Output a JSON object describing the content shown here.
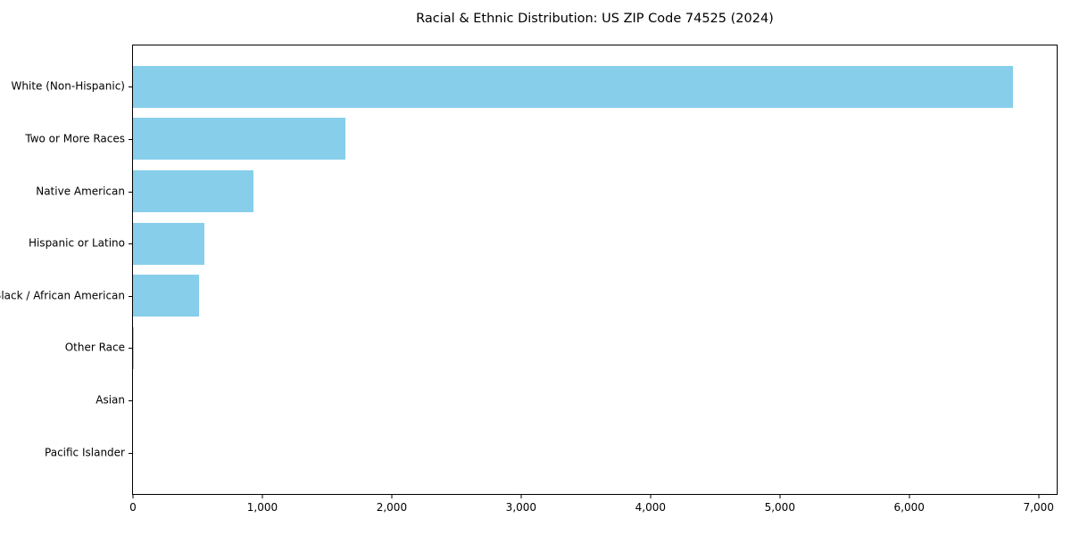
{
  "chart_data": {
    "type": "bar",
    "orientation": "horizontal",
    "title": "Racial & Ethnic Distribution: US ZIP Code 74525 (2024)",
    "categories": [
      "White (Non-Hispanic)",
      "Two or More Races",
      "Native American",
      "Hispanic or Latino",
      "Black / African American",
      "Other Race",
      "Asian",
      "Pacific Islander"
    ],
    "values": [
      6800,
      1640,
      930,
      550,
      510,
      10,
      0,
      0
    ],
    "xlabel": "",
    "ylabel": "",
    "xlim": [
      0,
      7140
    ],
    "x_ticks": [
      {
        "value": 0,
        "label": "0"
      },
      {
        "value": 1000,
        "label": "1,000"
      },
      {
        "value": 2000,
        "label": "2,000"
      },
      {
        "value": 3000,
        "label": "3,000"
      },
      {
        "value": 4000,
        "label": "4,000"
      },
      {
        "value": 5000,
        "label": "5,000"
      },
      {
        "value": 6000,
        "label": "6,000"
      },
      {
        "value": 7000,
        "label": "7,000"
      }
    ],
    "bar_color": "#87CEEB",
    "text_color": "#000000",
    "background_color": "#ffffff",
    "grid": false,
    "legend": false
  }
}
